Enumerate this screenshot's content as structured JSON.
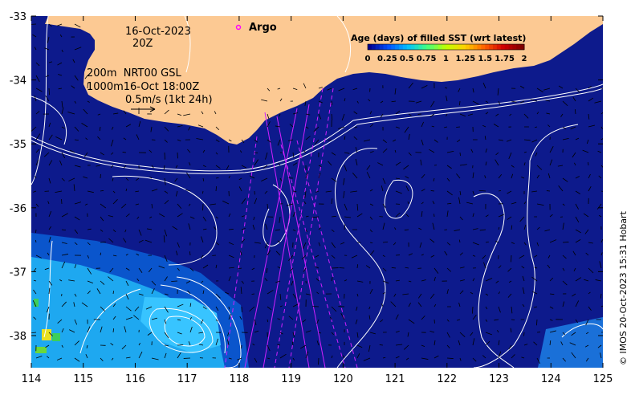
{
  "map": {
    "date_line1": "16-Oct-2023",
    "date_line2": "20Z",
    "argo_label": "Argo",
    "info_line1": "200m  NRT00 GSL",
    "info_line2": "1000m16-Oct 18:00Z",
    "scale_label": "0.5m/s (1kt 24h)",
    "colorbar_title": "Age (days) of filled SST (wrt latest)",
    "colorbar_ticks": [
      "0",
      "0.25",
      "0.5",
      "0.75",
      "1",
      "1.25",
      "1.5",
      "1.75",
      "2"
    ],
    "colorbar_colors": [
      "#00008f",
      "#0050ff",
      "#00c0ff",
      "#40ff80",
      "#c0ff00",
      "#ffd000",
      "#ff6000",
      "#d00000",
      "#800000"
    ],
    "x_ticks": [
      "114",
      "115",
      "116",
      "117",
      "118",
      "119",
      "120",
      "121",
      "122",
      "123",
      "124",
      "125"
    ],
    "y_ticks": [
      "-33",
      "-34",
      "-35",
      "-36",
      "-37",
      "-38"
    ],
    "credit": "© IMOS 20-Oct-2023 15:31 Hobart",
    "colors": {
      "land": "#fcc993",
      "ocean_deep": "#0d1a8c",
      "ocean_mid": "#0a55cc",
      "ocean_light": "#1ea8f0",
      "argo": "#ff00ff",
      "track": "#d020ff"
    }
  }
}
